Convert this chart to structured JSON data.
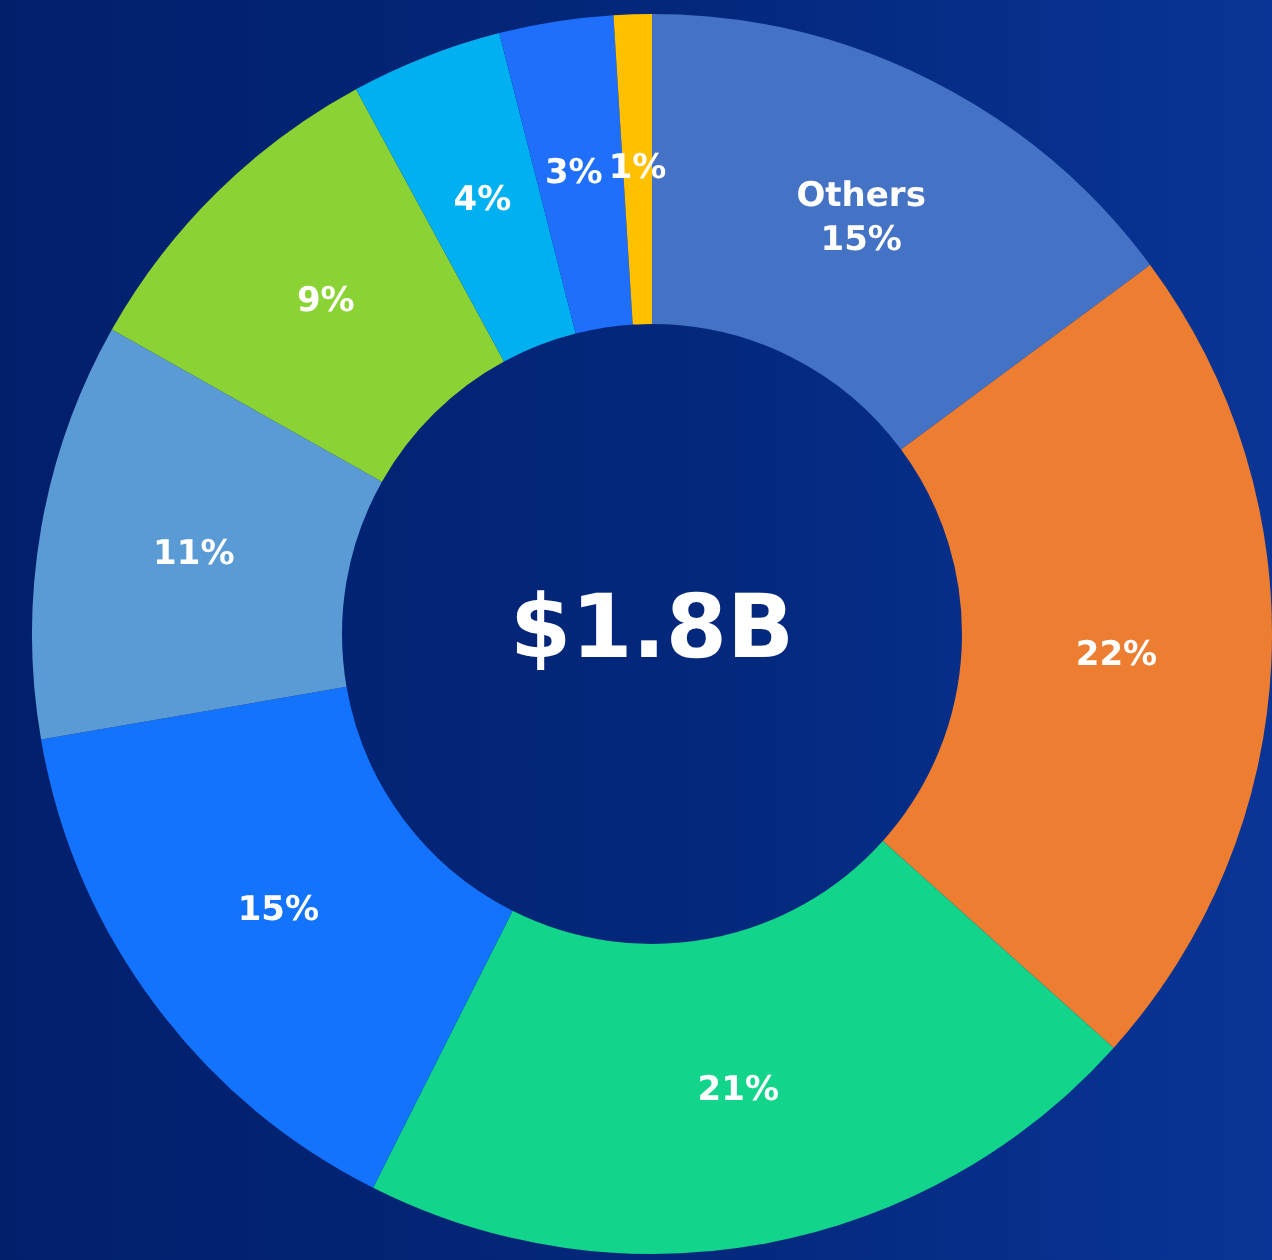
{
  "chart_data": {
    "type": "donut",
    "categories": [
      "Others",
      null,
      null,
      null,
      null,
      null,
      null,
      null,
      null
    ],
    "values": [
      15,
      22,
      21,
      15,
      11,
      9,
      4,
      3,
      1
    ],
    "colors": [
      "#4472c4",
      "#ed7d31",
      "#12d48a",
      "#1473fc",
      "#5b9bd5",
      "#8bd334",
      "#00b0f0",
      "#1f6ffa",
      "#ffc000"
    ],
    "value_labels": [
      "15%",
      "22%",
      "21%",
      "15%",
      "11%",
      "9%",
      "4%",
      "3%",
      "1%"
    ],
    "annotations": [
      "$1.8B"
    ]
  }
}
